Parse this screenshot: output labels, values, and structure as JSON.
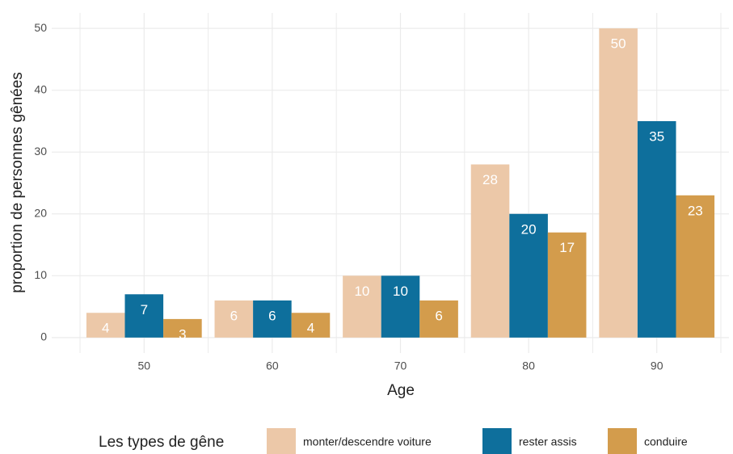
{
  "chart_data": {
    "type": "bar",
    "x_label": "Age",
    "y_label": "proportion de personnes gênées",
    "categories": [
      "50",
      "60",
      "70",
      "80",
      "90"
    ],
    "series": [
      {
        "name": "monter/descendre voiture",
        "color": "#ecc8a8",
        "values": [
          4,
          6,
          10,
          28,
          50
        ]
      },
      {
        "name": "rester assis",
        "color": "#0e6f9c",
        "values": [
          7,
          6,
          10,
          20,
          35
        ]
      },
      {
        "name": "conduire",
        "color": "#d39c4c",
        "values": [
          3,
          4,
          6,
          17,
          23
        ]
      }
    ],
    "legend_title": "Les types de gêne",
    "legend": "bottom",
    "ylim": [
      -2.5,
      52.5
    ],
    "yticks": [
      0,
      10,
      20,
      30,
      40,
      50
    ],
    "grid": true
  }
}
